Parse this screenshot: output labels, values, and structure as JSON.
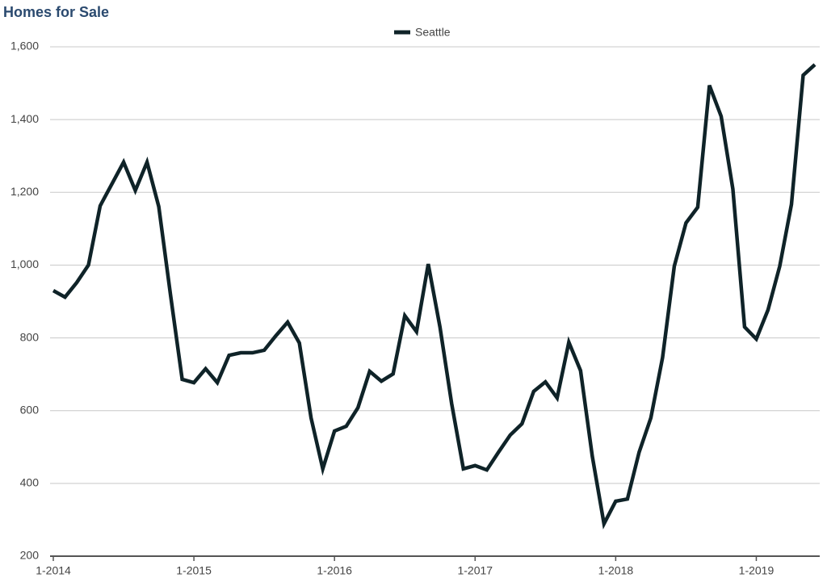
{
  "chart_data": {
    "type": "line",
    "title": "Homes for Sale",
    "categories": [
      "1-2014",
      null,
      null,
      null,
      null,
      null,
      null,
      null,
      null,
      null,
      null,
      null,
      "1-2015",
      null,
      null,
      null,
      null,
      null,
      null,
      null,
      null,
      null,
      null,
      null,
      "1-2016",
      null,
      null,
      null,
      null,
      null,
      null,
      null,
      null,
      null,
      null,
      null,
      "1-2017",
      null,
      null,
      null,
      null,
      null,
      null,
      null,
      null,
      null,
      null,
      null,
      "1-2018",
      null,
      null,
      null,
      null,
      null,
      null,
      null,
      null,
      null,
      null,
      null,
      "1-2019",
      null,
      null,
      null,
      null,
      null
    ],
    "series": [
      {
        "name": "Seattle",
        "color": "#0f2328",
        "values": [
          930,
          912,
          952,
          1000,
          1163,
          1223,
          1283,
          1205,
          1283,
          1161,
          919,
          686,
          677,
          715,
          677,
          752,
          759,
          759,
          766,
          806,
          843,
          786,
          580,
          440,
          544,
          557,
          608,
          708,
          681,
          701,
          861,
          817,
          1003,
          830,
          619,
          440,
          449,
          437,
          486,
          533,
          564,
          653,
          679,
          635,
          788,
          710,
          475,
          289,
          351,
          357,
          486,
          580,
          746,
          997,
          1116,
          1159,
          1494,
          1409,
          1209,
          830,
          797,
          877,
          997,
          1167,
          1522,
          1551
        ]
      }
    ],
    "ylim": [
      200,
      1600
    ],
    "yticks": [
      200,
      400,
      600,
      800,
      {
        "value": 1000,
        "label": "1,000"
      },
      {
        "value": 1200,
        "label": "1,200"
      },
      {
        "value": 1400,
        "label": "1,400"
      },
      {
        "value": 1600,
        "label": "1,600"
      }
    ],
    "grid": true,
    "legend": "top"
  }
}
